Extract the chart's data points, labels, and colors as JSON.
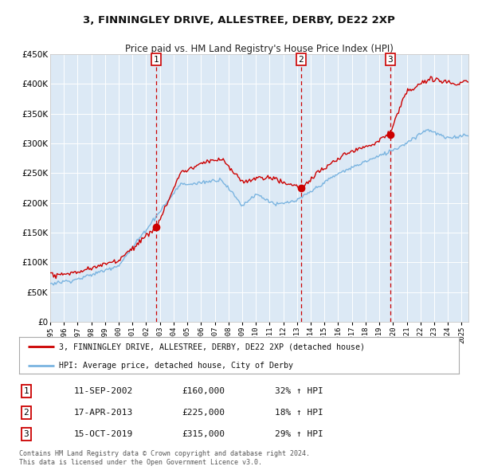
{
  "title": "3, FINNINGLEY DRIVE, ALLESTREE, DERBY, DE22 2XP",
  "subtitle": "Price paid vs. HM Land Registry's House Price Index (HPI)",
  "ylim": [
    0,
    450000
  ],
  "yticks": [
    0,
    50000,
    100000,
    150000,
    200000,
    250000,
    300000,
    350000,
    400000,
    450000
  ],
  "ytick_labels": [
    "£0",
    "£50K",
    "£100K",
    "£150K",
    "£200K",
    "£250K",
    "£300K",
    "£350K",
    "£400K",
    "£450K"
  ],
  "background_color": "#ffffff",
  "plot_bg_color": "#dce9f5",
  "grid_color": "#ffffff",
  "sale_color": "#cc0000",
  "hpi_color": "#7ab4e0",
  "vline_color": "#cc0000",
  "transactions": [
    {
      "label": "1",
      "date_str": "11-SEP-2002",
      "date_x": 2002.71,
      "price": 160000,
      "pct": "32%"
    },
    {
      "label": "2",
      "date_str": "17-APR-2013",
      "date_x": 2013.29,
      "price": 225000,
      "pct": "18%"
    },
    {
      "label": "3",
      "date_str": "15-OCT-2019",
      "date_x": 2019.79,
      "price": 315000,
      "pct": "29%"
    }
  ],
  "legend_line1": "3, FINNINGLEY DRIVE, ALLESTREE, DERBY, DE22 2XP (detached house)",
  "legend_line2": "HPI: Average price, detached house, City of Derby",
  "footer1": "Contains HM Land Registry data © Crown copyright and database right 2024.",
  "footer2": "This data is licensed under the Open Government Licence v3.0.",
  "xmin": 1995,
  "xmax": 2025.5
}
